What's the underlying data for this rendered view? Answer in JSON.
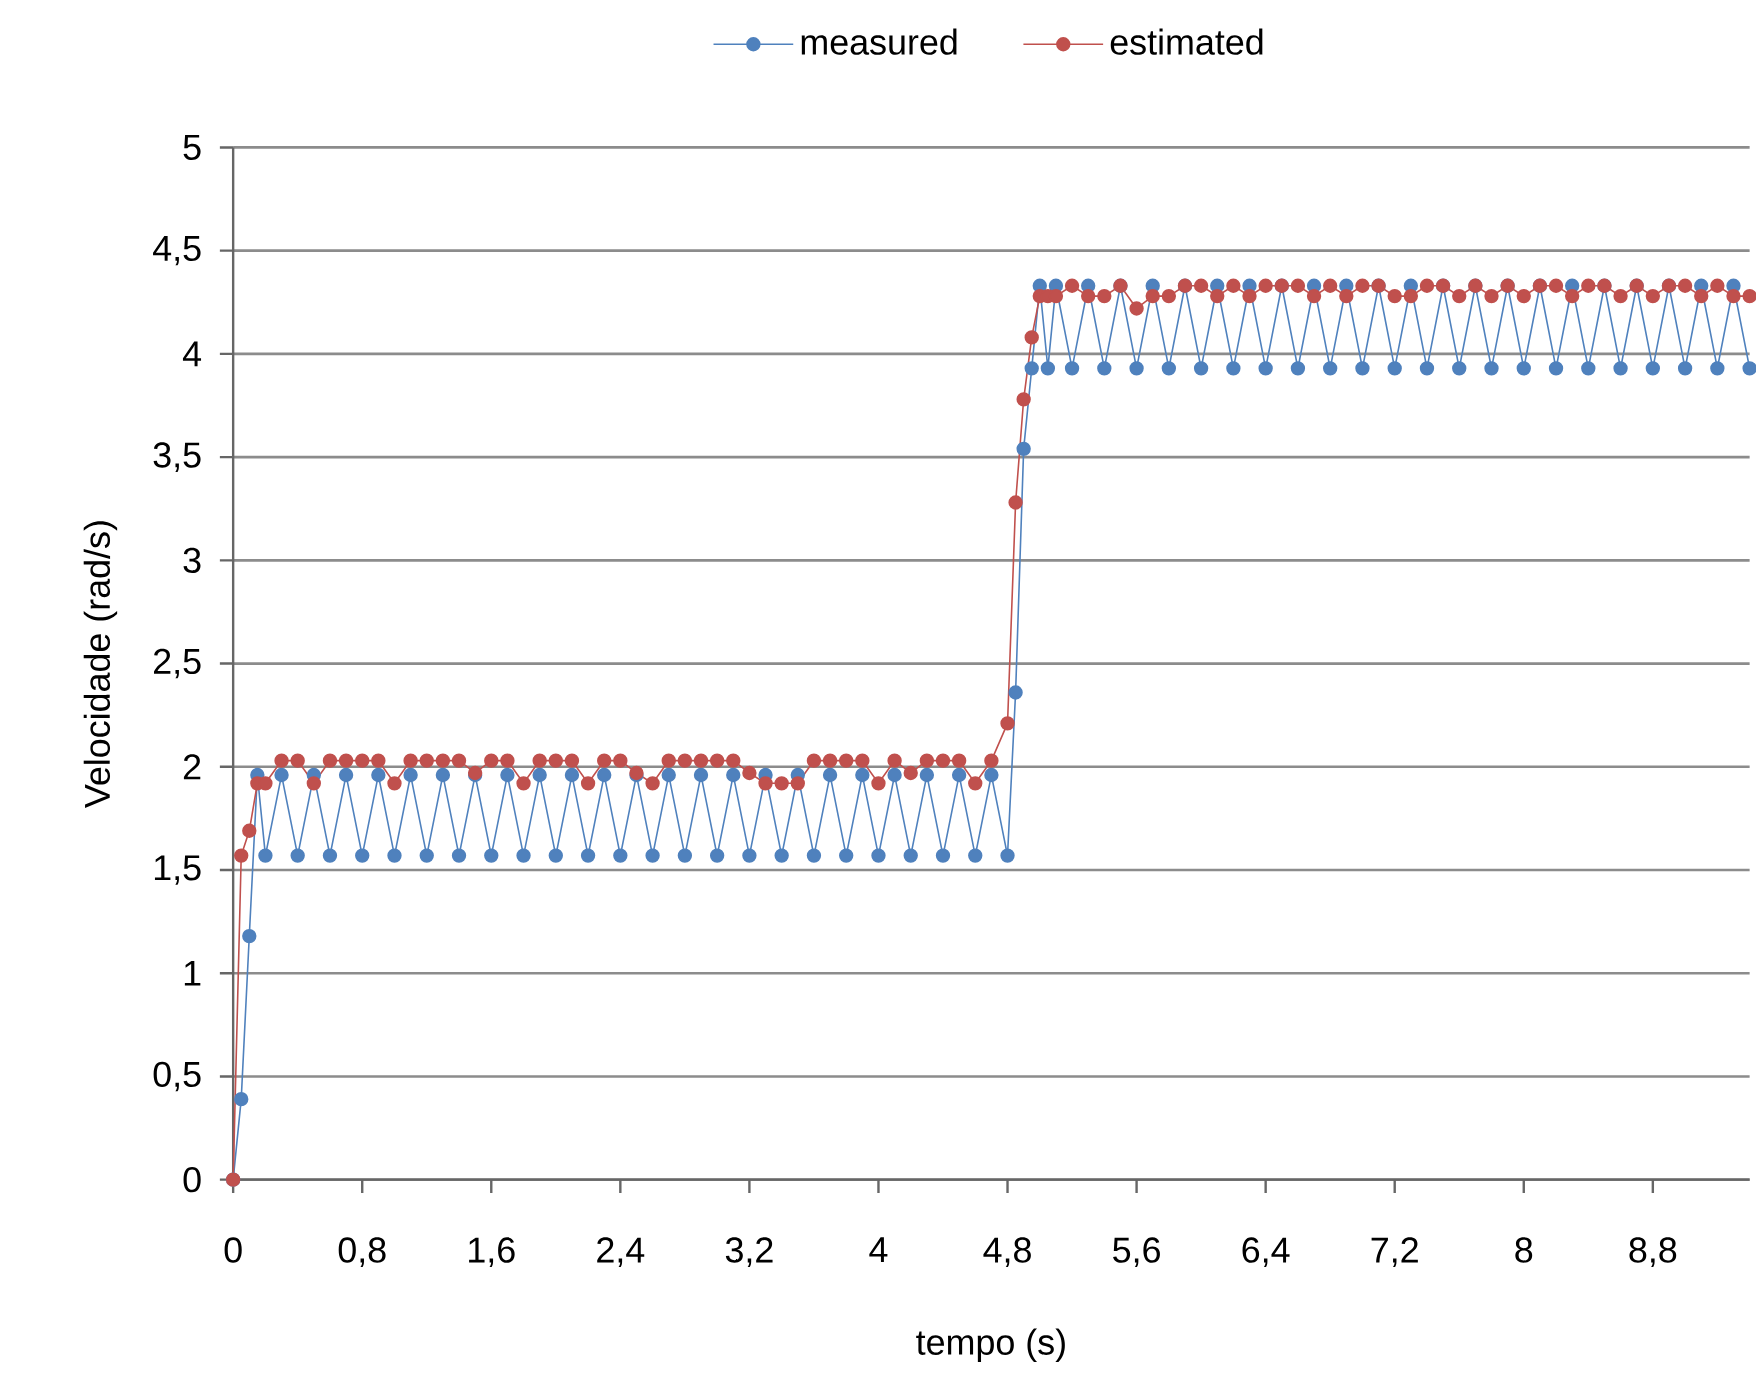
{
  "chart_data": {
    "type": "line",
    "xlabel": "tempo (s)",
    "ylabel": "Velocidade (rad/s)",
    "x": [
      0,
      0.05,
      0.1,
      0.15,
      0.2,
      0.3,
      0.4,
      0.5,
      0.6,
      0.7,
      0.8,
      0.9,
      1,
      1.1,
      1.2,
      1.3,
      1.4,
      1.5,
      1.6,
      1.7,
      1.8,
      1.9,
      2,
      2.1,
      2.2,
      2.3,
      2.4,
      2.5,
      2.6,
      2.7,
      2.8,
      2.9,
      3,
      3.1,
      3.2,
      3.3,
      3.4,
      3.5,
      3.6,
      3.7,
      3.8,
      3.9,
      4,
      4.1,
      4.2,
      4.3,
      4.4,
      4.5,
      4.6,
      4.7,
      4.8,
      4.85,
      4.9,
      4.95,
      5,
      5.05,
      5.1,
      5.2,
      5.3,
      5.4,
      5.5,
      5.6,
      5.7,
      5.8,
      5.9,
      6,
      6.1,
      6.2,
      6.3,
      6.4,
      6.5,
      6.6,
      6.7,
      6.8,
      6.9,
      7,
      7.1,
      7.2,
      7.3,
      7.4,
      7.5,
      7.6,
      7.7,
      7.8,
      7.9,
      8,
      8.1,
      8.2,
      8.3,
      8.4,
      8.5,
      8.6,
      8.7,
      8.8,
      8.9,
      9,
      9.1,
      9.2,
      9.3,
      9.4
    ],
    "series": [
      {
        "name": "measured",
        "color": "#4f81bd",
        "values": [
          0,
          0.39,
          1.18,
          1.96,
          1.57,
          1.96,
          1.57,
          1.96,
          1.57,
          1.96,
          1.57,
          1.96,
          1.57,
          1.96,
          1.57,
          1.96,
          1.57,
          1.96,
          1.57,
          1.96,
          1.57,
          1.96,
          1.57,
          1.96,
          1.57,
          1.96,
          1.57,
          1.96,
          1.57,
          1.96,
          1.57,
          1.96,
          1.57,
          1.96,
          1.57,
          1.96,
          1.57,
          1.96,
          1.57,
          1.96,
          1.57,
          1.96,
          1.57,
          1.96,
          1.57,
          1.96,
          1.57,
          1.96,
          1.57,
          1.96,
          1.57,
          2.36,
          3.54,
          3.93,
          4.33,
          3.93,
          4.33,
          3.93,
          4.33,
          3.93,
          4.33,
          3.93,
          4.33,
          3.93,
          4.33,
          3.93,
          4.33,
          3.93,
          4.33,
          3.93,
          4.33,
          3.93,
          4.33,
          3.93,
          4.33,
          3.93,
          4.33,
          3.93,
          4.33,
          3.93,
          4.33,
          3.93,
          4.33,
          3.93,
          4.33,
          3.93,
          4.33,
          3.93,
          4.33,
          3.93,
          4.33,
          3.93,
          4.33,
          3.93,
          4.33,
          3.93,
          4.33,
          3.93,
          4.33,
          3.93
        ]
      },
      {
        "name": "estimated",
        "color": "#c0504d",
        "values": [
          0,
          1.57,
          1.69,
          1.92,
          1.92,
          2.03,
          2.03,
          1.92,
          2.03,
          2.03,
          2.03,
          2.03,
          1.92,
          2.03,
          2.03,
          2.03,
          2.03,
          1.97,
          2.03,
          2.03,
          1.92,
          2.03,
          2.03,
          2.03,
          1.92,
          2.03,
          2.03,
          1.97,
          1.92,
          2.03,
          2.03,
          2.03,
          2.03,
          2.03,
          1.97,
          1.92,
          1.92,
          1.92,
          2.03,
          2.03,
          2.03,
          2.03,
          1.92,
          2.03,
          1.97,
          2.03,
          2.03,
          2.03,
          1.92,
          2.03,
          2.21,
          3.28,
          3.78,
          4.08,
          4.28,
          4.28,
          4.28,
          4.33,
          4.28,
          4.28,
          4.33,
          4.22,
          4.28,
          4.28,
          4.33,
          4.33,
          4.28,
          4.33,
          4.28,
          4.33,
          4.33,
          4.33,
          4.28,
          4.33,
          4.28,
          4.33,
          4.33,
          4.28,
          4.28,
          4.33,
          4.33,
          4.28,
          4.33,
          4.28,
          4.33,
          4.28,
          4.33,
          4.33,
          4.28,
          4.33,
          4.33,
          4.28,
          4.33,
          4.28,
          4.33,
          4.33,
          4.28,
          4.33,
          4.28,
          4.28
        ]
      }
    ],
    "xlim": [
      0,
      9.4
    ],
    "ylim": [
      0,
      5
    ],
    "xticks": [
      0,
      {
        "value": 0.8,
        "label": "0,8"
      },
      {
        "value": 1.6,
        "label": "1,6"
      },
      {
        "value": 2.4,
        "label": "2,4"
      },
      {
        "value": 3.2,
        "label": "3,2"
      },
      4,
      {
        "value": 4.8,
        "label": "4,8"
      },
      {
        "value": 5.6,
        "label": "5,6"
      },
      {
        "value": 6.4,
        "label": "6,4"
      },
      {
        "value": 7.2,
        "label": "7,2"
      },
      8,
      {
        "value": 8.8,
        "label": "8,8"
      }
    ],
    "yticks": [
      0,
      {
        "value": 0.5,
        "label": "0,5"
      },
      1,
      {
        "value": 1.5,
        "label": "1,5"
      },
      2,
      {
        "value": 2.5,
        "label": "2,5"
      },
      3,
      {
        "value": 3.5,
        "label": "3,5"
      },
      4,
      {
        "value": 4.5,
        "label": "4,5"
      },
      5
    ],
    "grid": "y",
    "legend": "top",
    "marker": "circle"
  }
}
